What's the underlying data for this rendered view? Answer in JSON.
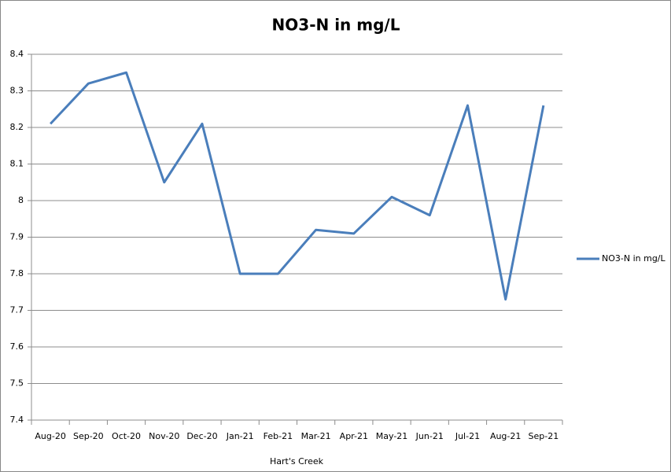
{
  "chart_data": {
    "type": "line",
    "title": "NO3-N in mg/L",
    "x_label": "Hart's Creek",
    "categories": [
      "Aug-20",
      "Sep-20",
      "Oct-20",
      "Nov-20",
      "Dec-20",
      "Jan-21",
      "Feb-21",
      "Mar-21",
      "Apr-21",
      "May-21",
      "Jun-21",
      "Jul-21",
      "Aug-21",
      "Sep-21"
    ],
    "series": [
      {
        "name": "NO3-N in mg/L",
        "color": "#4a7ebb",
        "values": [
          8.21,
          8.32,
          8.35,
          8.05,
          8.21,
          7.8,
          7.8,
          7.92,
          7.91,
          8.01,
          7.96,
          8.26,
          7.73,
          8.26
        ]
      }
    ],
    "ylim": [
      7.4,
      8.4
    ],
    "yticks": [
      7.4,
      7.5,
      7.6,
      7.7,
      7.8,
      7.9,
      8,
      8.1,
      8.2,
      8.3,
      8.4
    ],
    "grid": true,
    "legend": "right"
  }
}
